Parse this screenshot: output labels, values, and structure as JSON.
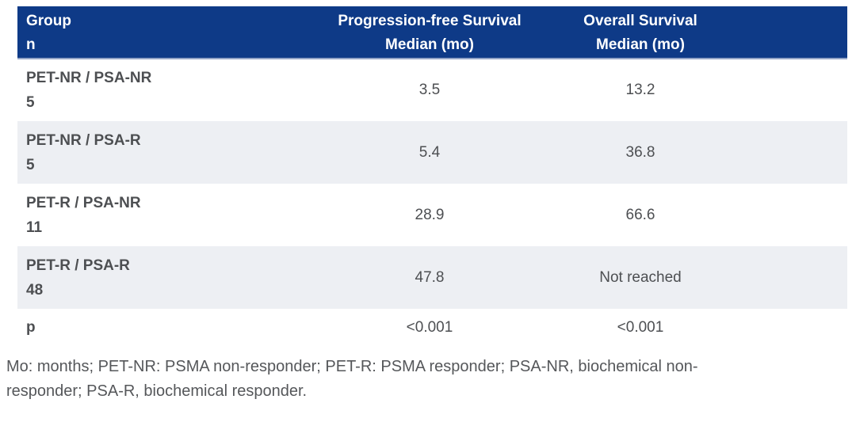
{
  "table": {
    "header": {
      "group": "Group",
      "n": "n",
      "pfs_line1": "Progression-free Survival",
      "pfs_line2": "Median (mo)",
      "os_line1": "Overall Survival",
      "os_line2": "Median (mo)"
    },
    "rows": [
      {
        "group": "PET-NR / PSA-NR",
        "n": "5",
        "pfs": "3.5",
        "os": "13.2"
      },
      {
        "group": "PET-NR / PSA-R",
        "n": "5",
        "pfs": "5.4",
        "os": "36.8"
      },
      {
        "group": "PET-R / PSA-NR",
        "n": "11",
        "pfs": "28.9",
        "os": "66.6"
      },
      {
        "group": "PET-R / PSA-R",
        "n": "48",
        "pfs": "47.8",
        "os": "Not reached"
      }
    ],
    "p_row": {
      "label": "p",
      "pfs": "<0.001",
      "os": "<0.001"
    }
  },
  "footnote": {
    "line1": "Mo: months; PET-NR: PSMA non-responder; PET-R: PSMA responder; PSA-NR, biochemical non-",
    "line2": "responder; PSA-R, biochemical responder."
  },
  "colors": {
    "header_bg": "#0e3a87",
    "header_text": "#ffffff",
    "row_alt_bg": "#edeff3",
    "row_bg": "#ffffff",
    "body_text": "#4d4f52"
  }
}
